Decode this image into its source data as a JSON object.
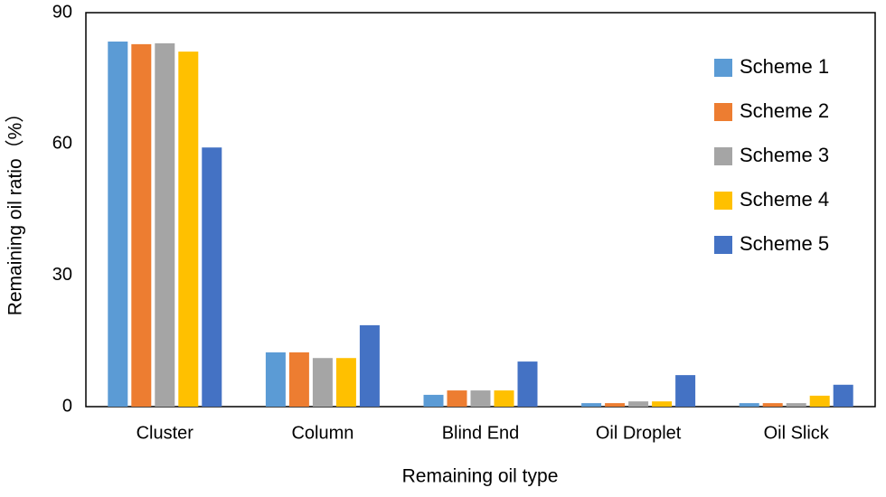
{
  "chart_data": {
    "type": "bar",
    "x_label": "Remaining oil type",
    "y_label": "Remaining oil ratio（%）",
    "categories": [
      "Cluster",
      "Column",
      "Blind End",
      "Oil Droplet",
      "Oil Slick"
    ],
    "series": [
      {
        "name": "Scheme 1",
        "color": "#5b9bd5",
        "values": [
          83.4,
          12.4,
          2.7,
          0.8,
          0.8
        ]
      },
      {
        "name": "Scheme 2",
        "color": "#ed7d31",
        "values": [
          82.8,
          12.4,
          3.7,
          0.8,
          0.8
        ]
      },
      {
        "name": "Scheme 3",
        "color": "#a5a5a5",
        "values": [
          83.0,
          11.1,
          3.7,
          1.2,
          0.8
        ]
      },
      {
        "name": "Scheme 4",
        "color": "#ffc000",
        "values": [
          81.1,
          11.1,
          3.7,
          1.2,
          2.5
        ]
      },
      {
        "name": "Scheme 5",
        "color": "#4472c4",
        "values": [
          59.2,
          18.6,
          10.3,
          7.2,
          5.0
        ]
      }
    ],
    "ylim": [
      0,
      90
    ],
    "yticks": [
      0,
      30,
      60,
      90
    ],
    "grid": false,
    "legend": "upper right"
  }
}
